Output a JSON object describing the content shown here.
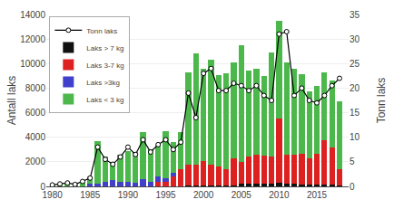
{
  "chart_data": {
    "type": "bar",
    "stacked": true,
    "x": [
      1980,
      1981,
      1982,
      1983,
      1984,
      1985,
      1986,
      1987,
      1988,
      1989,
      1990,
      1991,
      1992,
      1993,
      1994,
      1995,
      1996,
      1997,
      1998,
      1999,
      2000,
      2001,
      2002,
      2003,
      2004,
      2005,
      2006,
      2007,
      2008,
      2009,
      2010,
      2011,
      2012,
      2013,
      2014,
      2015,
      2016,
      2017,
      2018
    ],
    "xlim": [
      1979.2,
      2019.2
    ],
    "xticks": [
      1980,
      1985,
      1990,
      1995,
      2000,
      2005,
      2010,
      2015
    ],
    "ylabel": "Antall laks",
    "y2label": "Tonn laks",
    "ylim": [
      0,
      14000
    ],
    "yticks": [
      0,
      2000,
      4000,
      6000,
      8000,
      10000,
      12000,
      14000
    ],
    "y2lim": [
      0,
      35
    ],
    "y2ticks": [
      0,
      5,
      10,
      15,
      20,
      25,
      30,
      35
    ],
    "grid": true,
    "legend": "upper left",
    "series": [
      {
        "name": "Laks > 7 kg",
        "color": "#111111",
        "values": [
          0,
          0,
          0,
          0,
          0,
          0,
          0,
          0,
          0,
          0,
          0,
          0,
          0,
          0,
          0,
          0,
          0,
          0,
          100,
          100,
          100,
          100,
          100,
          100,
          100,
          200,
          200,
          200,
          200,
          200,
          300,
          200,
          200,
          150,
          150,
          150,
          150,
          150,
          100
        ]
      },
      {
        "name": "Laks 3-7 kg",
        "color": "#dd2020",
        "values": [
          0,
          0,
          0,
          0,
          0,
          0,
          0,
          0,
          0,
          0,
          0,
          0,
          0,
          0,
          400,
          400,
          800,
          1400,
          1700,
          1700,
          2000,
          1700,
          1500,
          1300,
          2200,
          1800,
          2200,
          2400,
          2300,
          2200,
          5200,
          2400,
          2400,
          2500,
          2100,
          2500,
          3600,
          3000,
          1300
        ]
      },
      {
        "name": "Laks >3kg",
        "color": "#4040cc",
        "values": [
          0,
          0,
          0,
          0,
          0,
          200,
          200,
          400,
          500,
          400,
          400,
          300,
          600,
          400,
          400,
          300,
          300,
          0,
          0,
          0,
          0,
          0,
          0,
          0,
          0,
          0,
          0,
          0,
          0,
          0,
          0,
          0,
          0,
          0,
          0,
          0,
          0,
          0,
          0
        ]
      },
      {
        "name": "Laks < 3 kg",
        "color": "#4cb84c",
        "values": [
          100,
          150,
          200,
          150,
          350,
          600,
          3500,
          2000,
          1500,
          2200,
          2500,
          2500,
          3800,
          2600,
          2500,
          3800,
          2500,
          3000,
          7500,
          9000,
          7500,
          8500,
          7500,
          7800,
          7800,
          9500,
          7000,
          7000,
          6500,
          8500,
          8000,
          7500,
          7000,
          6500,
          5500,
          5500,
          5500,
          5500,
          5500
        ]
      },
      {
        "name": "Tonn laks",
        "type": "line",
        "axis": "y2",
        "color": "#000000",
        "marker": "circle",
        "values": [
          0.3,
          0.5,
          0.7,
          0.4,
          1.0,
          1.7,
          8.0,
          5.5,
          4.5,
          6.0,
          8.0,
          6.5,
          9.5,
          7.0,
          8.5,
          9.5,
          7.5,
          9.0,
          19.0,
          14.0,
          23.0,
          24.0,
          19.5,
          19.5,
          21.0,
          20.5,
          19.5,
          20.5,
          18.5,
          17.5,
          31.0,
          31.5,
          18.5,
          20.0,
          17.5,
          17.0,
          18.5,
          20.5,
          22.0
        ]
      }
    ]
  }
}
